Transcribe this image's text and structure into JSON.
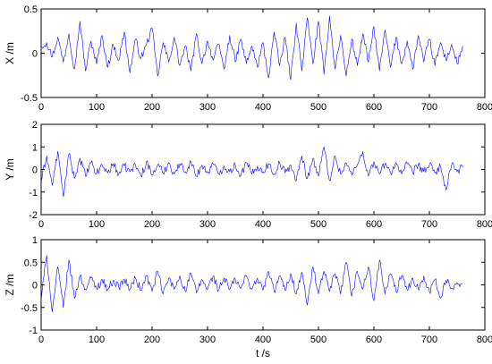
{
  "chart_data": [
    {
      "type": "line",
      "ylabel": "X /m",
      "xlabel": "",
      "xlim": [
        0,
        800
      ],
      "ylim": [
        -0.5,
        0.5
      ],
      "x_ticks": [
        0,
        100,
        200,
        300,
        400,
        500,
        600,
        700,
        800
      ],
      "y_ticks": [
        -0.5,
        0,
        0.5
      ],
      "x_tick_labels": [
        "0",
        "100",
        "200",
        "300",
        "400",
        "500",
        "600",
        "700",
        "800"
      ],
      "y_tick_labels": [
        "-0.5",
        "0",
        "0.5"
      ],
      "color": "#0000ff",
      "x_step": 10,
      "values": [
        0.08,
        0.12,
        -0.04,
        0.18,
        -0.1,
        0.22,
        -0.18,
        0.36,
        -0.2,
        0.14,
        -0.12,
        0.2,
        -0.16,
        0.1,
        -0.08,
        0.24,
        -0.22,
        0.16,
        -0.06,
        0.1,
        0.28,
        -0.26,
        0.12,
        -0.1,
        0.18,
        -0.14,
        0.08,
        -0.2,
        0.22,
        -0.12,
        0.14,
        -0.08,
        0.1,
        -0.18,
        0.2,
        -0.1,
        0.16,
        -0.12,
        0.08,
        -0.16,
        0.12,
        -0.28,
        0.24,
        -0.14,
        0.18,
        -0.3,
        0.34,
        -0.2,
        0.4,
        -0.12,
        0.36,
        -0.24,
        0.42,
        -0.18,
        0.2,
        -0.26,
        0.16,
        -0.14,
        0.22,
        -0.1,
        0.3,
        -0.2,
        0.26,
        -0.16,
        0.18,
        -0.12,
        0.14,
        -0.18,
        0.2,
        -0.1,
        0.16,
        -0.14,
        0.12,
        -0.08,
        0.1,
        -0.12,
        0.08
      ]
    },
    {
      "type": "line",
      "ylabel": "Y /m",
      "xlabel": "",
      "xlim": [
        0,
        800
      ],
      "ylim": [
        -2,
        2
      ],
      "x_ticks": [
        0,
        100,
        200,
        300,
        400,
        500,
        600,
        700,
        800
      ],
      "y_ticks": [
        -2,
        -1,
        0,
        1,
        2
      ],
      "x_tick_labels": [
        "0",
        "100",
        "200",
        "300",
        "400",
        "500",
        "600",
        "700",
        "800"
      ],
      "y_tick_labels": [
        "-2",
        "-1",
        "0",
        "1",
        "2"
      ],
      "color": "#0000ff",
      "x_step": 10,
      "values": [
        -0.5,
        0.6,
        -0.7,
        0.8,
        -1.2,
        0.7,
        -0.4,
        0.5,
        -0.3,
        0.3,
        -0.2,
        0.2,
        -0.15,
        0.25,
        -0.2,
        0.15,
        -0.1,
        0.2,
        -0.3,
        0.35,
        -0.25,
        0.2,
        -0.15,
        0.3,
        -0.2,
        0.25,
        -0.1,
        0.35,
        -0.3,
        0.2,
        -0.15,
        0.25,
        -0.2,
        0.15,
        -0.1,
        0.2,
        -0.25,
        0.3,
        -0.2,
        0.15,
        -0.1,
        0.25,
        -0.2,
        0.3,
        -0.15,
        0.2,
        -0.5,
        0.6,
        -0.4,
        0.5,
        -0.3,
        1.0,
        -0.5,
        0.6,
        -0.2,
        0.3,
        -0.25,
        0.2,
        0.8,
        -0.3,
        0.35,
        -0.2,
        0.25,
        -0.15,
        0.3,
        -0.2,
        0.25,
        -0.15,
        0.2,
        -0.1,
        0.2,
        -0.15,
        0.15,
        -0.9,
        0.2,
        -0.1,
        0.1
      ]
    },
    {
      "type": "line",
      "ylabel": "Z /m",
      "xlabel": "t /s",
      "xlim": [
        0,
        800
      ],
      "ylim": [
        -1,
        1
      ],
      "x_ticks": [
        0,
        100,
        200,
        300,
        400,
        500,
        600,
        700,
        800
      ],
      "y_ticks": [
        -1,
        -0.5,
        0,
        0.5,
        1
      ],
      "x_tick_labels": [
        "0",
        "100",
        "200",
        "300",
        "400",
        "500",
        "600",
        "700",
        "800"
      ],
      "y_tick_labels": [
        "-1",
        "-0.5",
        "0",
        "0.5",
        "1"
      ],
      "color": "#0000ff",
      "x_step": 10,
      "values": [
        -0.3,
        0.65,
        -0.6,
        0.4,
        -0.5,
        0.55,
        -0.3,
        0.2,
        -0.1,
        0.15,
        -0.08,
        0.12,
        -0.1,
        0.1,
        -0.05,
        0.12,
        -0.1,
        0.15,
        -0.12,
        0.2,
        -0.15,
        0.3,
        -0.2,
        0.15,
        -0.1,
        0.2,
        -0.15,
        0.25,
        -0.18,
        0.12,
        -0.1,
        0.2,
        -0.12,
        0.15,
        -0.1,
        0.12,
        -0.08,
        0.2,
        -0.1,
        0.15,
        -0.12,
        0.3,
        -0.15,
        0.2,
        -0.12,
        0.25,
        -0.2,
        0.28,
        -0.45,
        0.4,
        -0.2,
        0.3,
        -0.15,
        0.25,
        -0.2,
        0.5,
        -0.25,
        0.3,
        -0.1,
        0.4,
        -0.35,
        0.55,
        -0.2,
        0.25,
        -0.15,
        0.2,
        -0.12,
        0.15,
        -0.1,
        0.2,
        -0.15,
        0.12,
        -0.3,
        0.1,
        -0.08,
        0.05,
        0.02
      ]
    }
  ]
}
